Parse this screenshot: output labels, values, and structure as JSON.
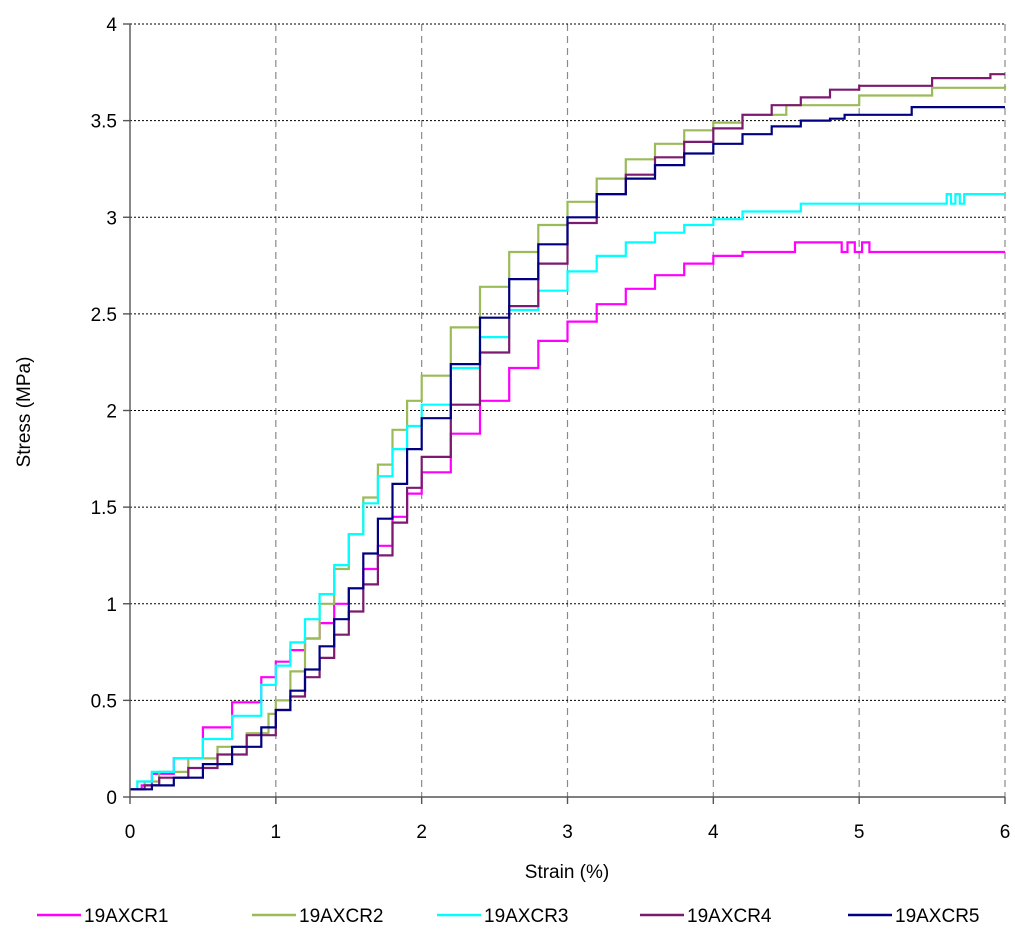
{
  "chart_data": {
    "type": "line",
    "title": "",
    "xlabel": "Strain (%)",
    "ylabel": "Stress (MPa)",
    "xlim": [
      0,
      6
    ],
    "ylim": [
      0,
      4
    ],
    "xticks": [
      0,
      1,
      2,
      3,
      4,
      5,
      6
    ],
    "yticks": [
      0,
      0.5,
      1,
      1.5,
      2,
      2.5,
      3,
      3.5,
      4
    ],
    "x_grid": "vertical dashed",
    "y_grid": "horizontal dotted",
    "legend_position": "bottom",
    "series": [
      {
        "name": "19AXCR1",
        "color": "#ff00ff",
        "points": [
          [
            0,
            0.04
          ],
          [
            0.08,
            0.06
          ],
          [
            0.15,
            0.12
          ],
          [
            0.3,
            0.2
          ],
          [
            0.5,
            0.36
          ],
          [
            0.7,
            0.49
          ],
          [
            0.9,
            0.62
          ],
          [
            1.0,
            0.7
          ],
          [
            1.1,
            0.76
          ],
          [
            1.2,
            0.82
          ],
          [
            1.3,
            0.9
          ],
          [
            1.4,
            1.0
          ],
          [
            1.5,
            1.08
          ],
          [
            1.6,
            1.18
          ],
          [
            1.7,
            1.3
          ],
          [
            1.8,
            1.45
          ],
          [
            1.9,
            1.57
          ],
          [
            2.0,
            1.68
          ],
          [
            2.2,
            1.88
          ],
          [
            2.4,
            2.05
          ],
          [
            2.6,
            2.22
          ],
          [
            2.8,
            2.36
          ],
          [
            3.0,
            2.46
          ],
          [
            3.2,
            2.55
          ],
          [
            3.4,
            2.63
          ],
          [
            3.6,
            2.7
          ],
          [
            3.8,
            2.76
          ],
          [
            4.0,
            2.8
          ],
          [
            4.2,
            2.82
          ],
          [
            4.55,
            2.82
          ],
          [
            4.56,
            2.87
          ],
          [
            4.85,
            2.87
          ],
          [
            4.88,
            2.82
          ],
          [
            4.92,
            2.87
          ],
          [
            4.97,
            2.82
          ],
          [
            5.02,
            2.87
          ],
          [
            5.07,
            2.82
          ],
          [
            6.0,
            2.82
          ]
        ]
      },
      {
        "name": "19AXCR2",
        "color": "#9bbb59",
        "points": [
          [
            0,
            0.04
          ],
          [
            0.1,
            0.08
          ],
          [
            0.2,
            0.13
          ],
          [
            0.4,
            0.2
          ],
          [
            0.6,
            0.26
          ],
          [
            0.8,
            0.33
          ],
          [
            0.95,
            0.43
          ],
          [
            1.0,
            0.5
          ],
          [
            1.1,
            0.65
          ],
          [
            1.2,
            0.82
          ],
          [
            1.3,
            1.0
          ],
          [
            1.4,
            1.18
          ],
          [
            1.5,
            1.36
          ],
          [
            1.6,
            1.55
          ],
          [
            1.7,
            1.72
          ],
          [
            1.8,
            1.9
          ],
          [
            1.9,
            2.05
          ],
          [
            2.0,
            2.18
          ],
          [
            2.2,
            2.43
          ],
          [
            2.4,
            2.64
          ],
          [
            2.6,
            2.82
          ],
          [
            2.8,
            2.96
          ],
          [
            3.0,
            3.08
          ],
          [
            3.2,
            3.2
          ],
          [
            3.4,
            3.3
          ],
          [
            3.6,
            3.38
          ],
          [
            3.8,
            3.45
          ],
          [
            4.0,
            3.49
          ],
          [
            4.2,
            3.53
          ],
          [
            4.5,
            3.58
          ],
          [
            5.0,
            3.63
          ],
          [
            5.5,
            3.67
          ],
          [
            6.0,
            3.68
          ]
        ]
      },
      {
        "name": "19AXCR3",
        "color": "#00ffff",
        "points": [
          [
            0,
            0.04
          ],
          [
            0.05,
            0.08
          ],
          [
            0.15,
            0.13
          ],
          [
            0.3,
            0.2
          ],
          [
            0.5,
            0.3
          ],
          [
            0.7,
            0.42
          ],
          [
            0.9,
            0.58
          ],
          [
            1.0,
            0.68
          ],
          [
            1.1,
            0.8
          ],
          [
            1.2,
            0.92
          ],
          [
            1.3,
            1.05
          ],
          [
            1.4,
            1.2
          ],
          [
            1.5,
            1.36
          ],
          [
            1.6,
            1.52
          ],
          [
            1.7,
            1.66
          ],
          [
            1.8,
            1.8
          ],
          [
            1.9,
            1.92
          ],
          [
            2.0,
            2.03
          ],
          [
            2.2,
            2.22
          ],
          [
            2.4,
            2.38
          ],
          [
            2.6,
            2.52
          ],
          [
            2.8,
            2.62
          ],
          [
            3.0,
            2.72
          ],
          [
            3.2,
            2.8
          ],
          [
            3.4,
            2.87
          ],
          [
            3.6,
            2.92
          ],
          [
            3.8,
            2.96
          ],
          [
            4.0,
            2.99
          ],
          [
            4.2,
            3.03
          ],
          [
            4.6,
            3.07
          ],
          [
            5.58,
            3.07
          ],
          [
            5.6,
            3.12
          ],
          [
            5.63,
            3.07
          ],
          [
            5.66,
            3.12
          ],
          [
            5.69,
            3.07
          ],
          [
            5.72,
            3.12
          ],
          [
            6.0,
            3.12
          ]
        ]
      },
      {
        "name": "19AXCR4",
        "color": "#7b1a6e",
        "points": [
          [
            0,
            0.04
          ],
          [
            0.1,
            0.06
          ],
          [
            0.2,
            0.1
          ],
          [
            0.4,
            0.15
          ],
          [
            0.6,
            0.22
          ],
          [
            0.8,
            0.32
          ],
          [
            1.0,
            0.45
          ],
          [
            1.1,
            0.52
          ],
          [
            1.2,
            0.62
          ],
          [
            1.3,
            0.72
          ],
          [
            1.4,
            0.84
          ],
          [
            1.5,
            0.96
          ],
          [
            1.6,
            1.1
          ],
          [
            1.7,
            1.25
          ],
          [
            1.8,
            1.42
          ],
          [
            1.9,
            1.6
          ],
          [
            2.0,
            1.76
          ],
          [
            2.2,
            2.03
          ],
          [
            2.4,
            2.3
          ],
          [
            2.6,
            2.54
          ],
          [
            2.8,
            2.76
          ],
          [
            3.0,
            2.97
          ],
          [
            3.2,
            3.12
          ],
          [
            3.4,
            3.22
          ],
          [
            3.6,
            3.31
          ],
          [
            3.8,
            3.39
          ],
          [
            4.0,
            3.46
          ],
          [
            4.2,
            3.53
          ],
          [
            4.4,
            3.58
          ],
          [
            4.6,
            3.62
          ],
          [
            4.8,
            3.66
          ],
          [
            5.0,
            3.68
          ],
          [
            5.5,
            3.72
          ],
          [
            5.9,
            3.74
          ],
          [
            6.0,
            3.74
          ]
        ]
      },
      {
        "name": "19AXCR5",
        "color": "#000080",
        "points": [
          [
            0,
            0.04
          ],
          [
            0.15,
            0.06
          ],
          [
            0.3,
            0.1
          ],
          [
            0.5,
            0.17
          ],
          [
            0.7,
            0.26
          ],
          [
            0.9,
            0.36
          ],
          [
            1.0,
            0.45
          ],
          [
            1.1,
            0.55
          ],
          [
            1.2,
            0.66
          ],
          [
            1.3,
            0.78
          ],
          [
            1.4,
            0.92
          ],
          [
            1.5,
            1.08
          ],
          [
            1.6,
            1.26
          ],
          [
            1.7,
            1.44
          ],
          [
            1.8,
            1.62
          ],
          [
            1.9,
            1.8
          ],
          [
            2.0,
            1.96
          ],
          [
            2.2,
            2.24
          ],
          [
            2.4,
            2.48
          ],
          [
            2.6,
            2.68
          ],
          [
            2.8,
            2.86
          ],
          [
            3.0,
            3.0
          ],
          [
            3.2,
            3.12
          ],
          [
            3.4,
            3.2
          ],
          [
            3.6,
            3.27
          ],
          [
            3.8,
            3.33
          ],
          [
            4.0,
            3.38
          ],
          [
            4.2,
            3.43
          ],
          [
            4.4,
            3.47
          ],
          [
            4.6,
            3.5
          ],
          [
            4.8,
            3.51
          ],
          [
            4.9,
            3.53
          ],
          [
            5.35,
            3.53
          ],
          [
            5.36,
            3.57
          ],
          [
            6.0,
            3.57
          ]
        ]
      }
    ]
  }
}
